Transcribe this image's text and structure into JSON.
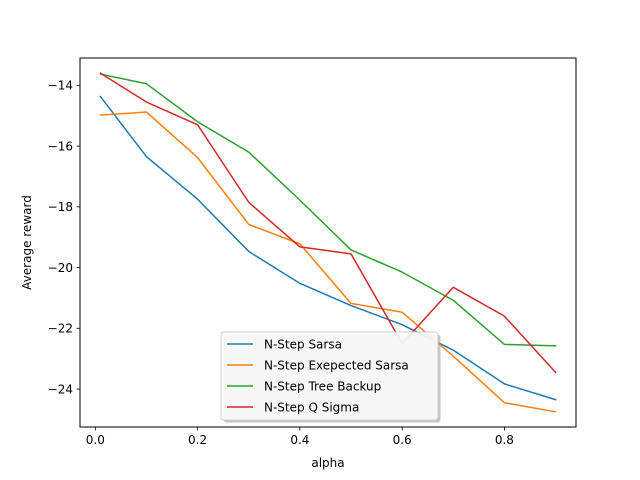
{
  "chart_data": {
    "type": "line",
    "title": "",
    "xlabel": "alpha",
    "ylabel": "Average reward",
    "xlim": [
      -0.03,
      0.94
    ],
    "ylim": [
      -25.25,
      -13.1
    ],
    "xticks": [
      0.0,
      0.2,
      0.4,
      0.6,
      0.8
    ],
    "xtick_labels": [
      "0.0",
      "0.2",
      "0.4",
      "0.6",
      "0.8"
    ],
    "yticks": [
      -14,
      -16,
      -18,
      -20,
      -22,
      -24
    ],
    "ytick_labels": [
      "−14",
      "−16",
      "−18",
      "−20",
      "−22",
      "−24"
    ],
    "grid": false,
    "legend_position": "lower center",
    "x": [
      0.01,
      0.1,
      0.2,
      0.3,
      0.4,
      0.5,
      0.6,
      0.7,
      0.8,
      0.9
    ],
    "series": [
      {
        "name": "N-Step Sarsa",
        "color": "#1f77b4",
        "values": [
          -14.37,
          -16.35,
          -17.75,
          -19.47,
          -20.52,
          -21.25,
          -21.88,
          -22.72,
          -23.83,
          -24.35
        ]
      },
      {
        "name": "N-Step Exepected Sarsa",
        "color": "#ff7f0e",
        "values": [
          -14.98,
          -14.88,
          -16.38,
          -18.58,
          -19.22,
          -21.18,
          -21.47,
          -22.92,
          -24.45,
          -24.75
        ]
      },
      {
        "name": "N-Step Tree Backup",
        "color": "#2ca02c",
        "values": [
          -13.63,
          -13.95,
          -15.2,
          -16.2,
          -17.78,
          -19.42,
          -20.15,
          -21.08,
          -22.53,
          -22.58
        ]
      },
      {
        "name": "N-Step Q Sigma",
        "color": "#d62728",
        "values": [
          -13.6,
          -14.55,
          -15.3,
          -17.85,
          -19.32,
          -19.55,
          -22.5,
          -20.65,
          -21.6,
          -23.45
        ]
      }
    ]
  }
}
